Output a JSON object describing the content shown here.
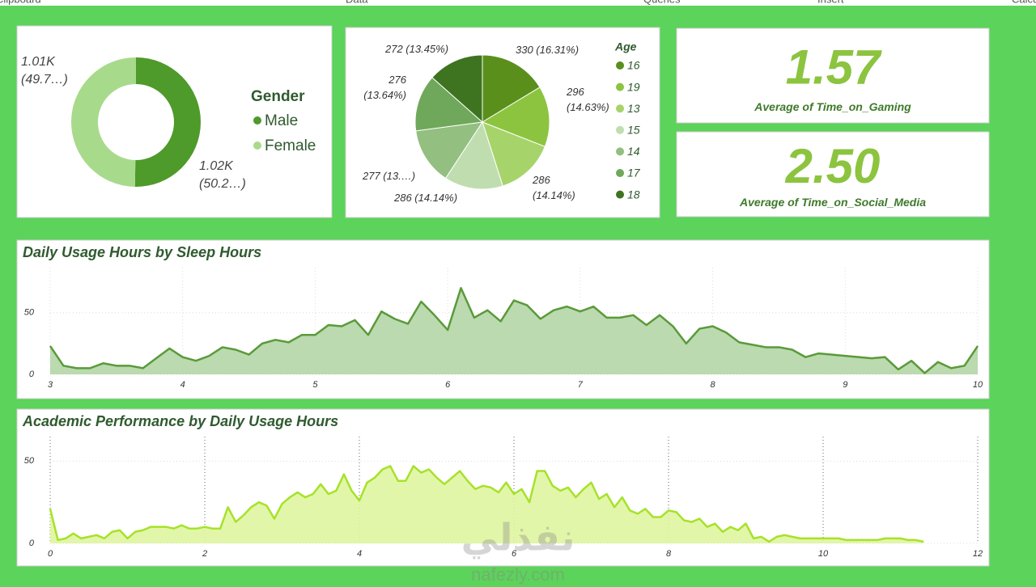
{
  "ribbon": [
    "Clipboard",
    "Data",
    "Queries",
    "Insert",
    "Calculations"
  ],
  "watermark": {
    "arabic": "نفذلي",
    "site": "nafezly.com"
  },
  "chart_data": [
    {
      "type": "donut",
      "legend_title": "Gender",
      "categories": [
        "Male",
        "Female"
      ],
      "values": [
        1020,
        1010
      ],
      "value_labels": [
        "1.02K (50.2…)",
        "1.01K (49.7…)"
      ],
      "colors": [
        "#4e9a2a",
        "#a8da8c"
      ]
    },
    {
      "type": "pie",
      "legend_title": "Age",
      "categories": [
        "16",
        "19",
        "13",
        "15",
        "14",
        "17",
        "18"
      ],
      "values": [
        330,
        296,
        286,
        286,
        277,
        276,
        272
      ],
      "value_labels": [
        "330 (16.31%)",
        "296 (14.63%)",
        "286 (14.14%)",
        "286 (14.14%)",
        "277 (13.…)",
        "276 (13.64%)",
        "272 (13.45%)"
      ],
      "colors": [
        "#5a8f1c",
        "#8cc43f",
        "#a6d46a",
        "#c0ddb0",
        "#93bf80",
        "#6fa85a",
        "#3e7420"
      ]
    },
    {
      "type": "card",
      "values": [
        1.57
      ],
      "label": "Average of Time_on_Gaming"
    },
    {
      "type": "card",
      "values": [
        2.5
      ],
      "value_labels": [
        "2.50"
      ],
      "label": "Average of Time_on_Social_Media"
    },
    {
      "type": "area",
      "title": "Daily Usage Hours by Sleep Hours",
      "color": "#5a9a3a",
      "fill": "#b4d6a6",
      "x": [
        3,
        3.1,
        3.2,
        3.3,
        3.4,
        3.5,
        3.6,
        3.7,
        3.8,
        3.9,
        4,
        4.1,
        4.2,
        4.3,
        4.4,
        4.5,
        4.6,
        4.7,
        4.8,
        4.9,
        5,
        5.1,
        5.2,
        5.3,
        5.4,
        5.5,
        5.6,
        5.7,
        5.8,
        5.9,
        6,
        6.1,
        6.2,
        6.3,
        6.4,
        6.5,
        6.6,
        6.7,
        6.8,
        6.9,
        7,
        7.1,
        7.2,
        7.3,
        7.4,
        7.5,
        7.6,
        7.7,
        7.8,
        7.9,
        8,
        8.1,
        8.2,
        8.3,
        8.4,
        8.5,
        8.6,
        8.7,
        8.8,
        8.9,
        9,
        9.1,
        9.2,
        9.3,
        9.4,
        9.5,
        9.6,
        9.7,
        9.8,
        9.9,
        10
      ],
      "values": [
        23,
        7,
        5,
        5,
        9,
        7,
        7,
        5,
        13,
        21,
        14,
        11,
        15,
        22,
        20,
        16,
        25,
        28,
        26,
        32,
        32,
        40,
        39,
        44,
        32,
        51,
        45,
        41,
        59,
        48,
        36,
        70,
        46,
        52,
        43,
        60,
        56,
        45,
        52,
        55,
        51,
        55,
        46,
        46,
        48,
        40,
        48,
        39,
        25,
        37,
        39,
        34,
        26,
        24,
        22,
        22,
        20,
        14,
        17,
        16,
        15,
        14,
        13,
        14,
        4,
        11,
        1,
        10,
        5,
        7,
        23
      ],
      "xlim": [
        3,
        10
      ],
      "xticks": [
        3,
        4,
        5,
        6,
        7,
        8,
        9,
        10
      ],
      "ylim": [
        0,
        80
      ],
      "yticks": [
        0,
        50
      ],
      "grid_color": "#ddd"
    },
    {
      "type": "area",
      "title": "Academic Performance by Daily Usage Hours",
      "color": "#a6e22a",
      "fill": "#dff5a0",
      "x": [
        0,
        0.1,
        0.2,
        0.3,
        0.4,
        0.5,
        0.6,
        0.7,
        0.8,
        0.9,
        1,
        1.1,
        1.2,
        1.3,
        1.4,
        1.5,
        1.6,
        1.7,
        1.8,
        1.9,
        2,
        2.1,
        2.2,
        2.3,
        2.4,
        2.5,
        2.6,
        2.7,
        2.8,
        2.9,
        3,
        3.1,
        3.2,
        3.3,
        3.4,
        3.5,
        3.6,
        3.7,
        3.8,
        3.9,
        4,
        4.1,
        4.2,
        4.3,
        4.4,
        4.5,
        4.6,
        4.7,
        4.8,
        4.9,
        5,
        5.1,
        5.2,
        5.3,
        5.4,
        5.5,
        5.6,
        5.7,
        5.8,
        5.9,
        6,
        6.1,
        6.2,
        6.3,
        6.4,
        6.5,
        6.6,
        6.7,
        6.8,
        6.9,
        7,
        7.1,
        7.2,
        7.3,
        7.4,
        7.5,
        7.6,
        7.7,
        7.8,
        7.9,
        8,
        8.1,
        8.2,
        8.3,
        8.4,
        8.5,
        8.6,
        8.7,
        8.8,
        8.9,
        9,
        9.1,
        9.2,
        9.3,
        9.4,
        9.5,
        9.6,
        9.7,
        9.8,
        9.9,
        10,
        10.1,
        10.2,
        10.3,
        10.4,
        10.5,
        10.6,
        10.7,
        10.8,
        10.9,
        11,
        11.1,
        11.2,
        11.3
      ],
      "values": [
        21,
        2,
        3,
        6,
        3,
        4,
        5,
        3,
        7,
        8,
        3,
        7,
        8,
        10,
        10,
        10,
        9,
        11,
        9,
        9,
        10,
        9,
        9,
        22,
        13,
        17,
        22,
        25,
        23,
        15,
        24,
        28,
        31,
        28,
        30,
        36,
        30,
        32,
        42,
        32,
        26,
        37,
        40,
        45,
        47,
        38,
        38,
        47,
        43,
        45,
        40,
        36,
        40,
        44,
        38,
        33,
        35,
        34,
        31,
        37,
        30,
        33,
        25,
        44,
        44,
        35,
        32,
        34,
        28,
        33,
        37,
        27,
        30,
        22,
        28,
        20,
        18,
        21,
        16,
        16,
        20,
        19,
        14,
        13,
        15,
        10,
        12,
        7,
        10,
        8,
        12,
        3,
        4,
        1,
        4,
        5,
        4,
        3,
        3,
        3,
        3,
        3,
        3,
        2,
        2,
        2,
        2,
        2,
        3,
        3,
        3,
        2,
        2,
        1
      ],
      "xlim": [
        0,
        12
      ],
      "xticks": [
        0,
        2,
        4,
        6,
        8,
        10,
        12
      ],
      "ylim": [
        0,
        60
      ],
      "yticks": [
        0,
        50
      ],
      "grid_color": "#666"
    }
  ]
}
